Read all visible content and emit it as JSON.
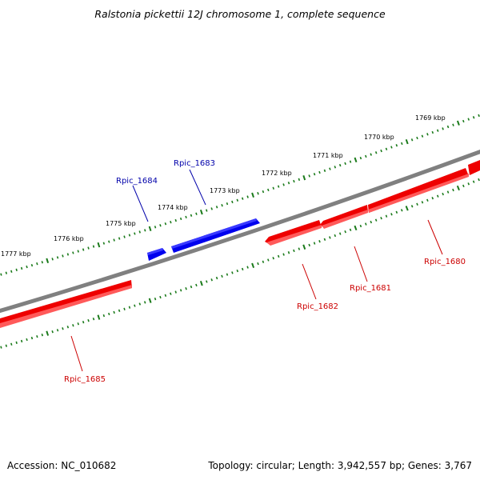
{
  "title": "Ralstonia pickettii 12J chromosome 1, complete sequence",
  "footer": {
    "accession": "Accession: NC_010682",
    "summary": "Topology: circular; Length: 3,942,557 bp; Genes: 3,767"
  },
  "colors": {
    "backbone": "#808080",
    "tick": "#1a7a1a",
    "forward_gene": "#0000ee",
    "reverse_gene": "#ee0000",
    "forward_label": "#0000aa",
    "reverse_label": "#cc0000"
  },
  "kbp_labels": [
    "1769 kbp",
    "1770 kbp",
    "1771 kbp",
    "1772 kbp",
    "1773 kbp",
    "1774 kbp",
    "1775 kbp",
    "1776 kbp",
    "1777 kbp"
  ],
  "genes": [
    {
      "name": "Rpic_1680",
      "strand": "reverse"
    },
    {
      "name": "Rpic_1681",
      "strand": "reverse"
    },
    {
      "name": "Rpic_1682",
      "strand": "reverse"
    },
    {
      "name": "Rpic_1683",
      "strand": "forward"
    },
    {
      "name": "Rpic_1684",
      "strand": "forward"
    },
    {
      "name": "Rpic_1685",
      "strand": "reverse"
    }
  ]
}
